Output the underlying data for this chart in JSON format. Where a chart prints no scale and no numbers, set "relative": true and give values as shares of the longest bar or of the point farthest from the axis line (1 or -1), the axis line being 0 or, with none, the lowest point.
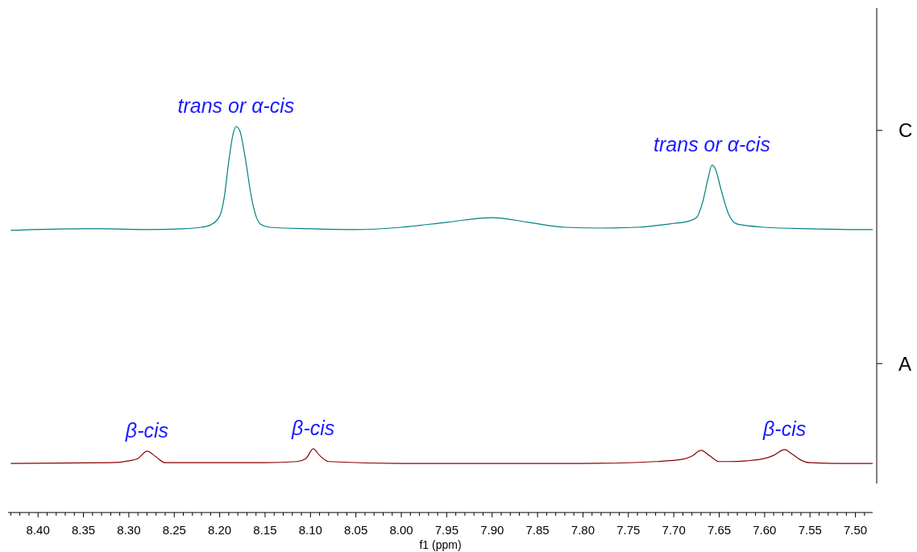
{
  "chart_data": {
    "type": "line",
    "relative": true,
    "xlabel": "f1 (ppm)",
    "xlim": [
      8.433,
      7.481
    ],
    "xticks": [
      {
        "value": 8.43,
        "label": null
      },
      {
        "value": 8.42,
        "label": null
      },
      {
        "value": 8.41,
        "label": null
      },
      {
        "value": 8.4,
        "label": "8.40"
      },
      {
        "value": 8.39,
        "label": null
      },
      {
        "value": 8.38,
        "label": null
      },
      {
        "value": 8.37,
        "label": null
      },
      {
        "value": 8.36,
        "label": null
      },
      {
        "value": 8.35,
        "label": "8.35"
      },
      {
        "value": 8.34,
        "label": null
      },
      {
        "value": 8.33,
        "label": null
      },
      {
        "value": 8.32,
        "label": null
      },
      {
        "value": 8.31,
        "label": null
      },
      {
        "value": 8.3,
        "label": "8.30"
      },
      {
        "value": 8.29,
        "label": null
      },
      {
        "value": 8.28,
        "label": null
      },
      {
        "value": 8.27,
        "label": null
      },
      {
        "value": 8.26,
        "label": null
      },
      {
        "value": 8.25,
        "label": "8.25"
      },
      {
        "value": 8.24,
        "label": null
      },
      {
        "value": 8.23,
        "label": null
      },
      {
        "value": 8.22,
        "label": null
      },
      {
        "value": 8.21,
        "label": null
      },
      {
        "value": 8.2,
        "label": "8.20"
      },
      {
        "value": 8.19,
        "label": null
      },
      {
        "value": 8.18,
        "label": null
      },
      {
        "value": 8.17,
        "label": null
      },
      {
        "value": 8.16,
        "label": null
      },
      {
        "value": 8.15,
        "label": "8.15"
      },
      {
        "value": 8.14,
        "label": null
      },
      {
        "value": 8.13,
        "label": null
      },
      {
        "value": 8.12,
        "label": null
      },
      {
        "value": 8.11,
        "label": null
      },
      {
        "value": 8.1,
        "label": "8.10"
      },
      {
        "value": 8.09,
        "label": null
      },
      {
        "value": 8.08,
        "label": null
      },
      {
        "value": 8.07,
        "label": null
      },
      {
        "value": 8.06,
        "label": null
      },
      {
        "value": 8.05,
        "label": "8.05"
      },
      {
        "value": 8.04,
        "label": null
      },
      {
        "value": 8.03,
        "label": null
      },
      {
        "value": 8.02,
        "label": null
      },
      {
        "value": 8.01,
        "label": null
      },
      {
        "value": 8.0,
        "label": "8.00"
      },
      {
        "value": 7.99,
        "label": null
      },
      {
        "value": 7.98,
        "label": null
      },
      {
        "value": 7.97,
        "label": null
      },
      {
        "value": 7.96,
        "label": null
      },
      {
        "value": 7.95,
        "label": "7.95"
      },
      {
        "value": 7.94,
        "label": null
      },
      {
        "value": 7.93,
        "label": null
      },
      {
        "value": 7.92,
        "label": null
      },
      {
        "value": 7.91,
        "label": null
      },
      {
        "value": 7.9,
        "label": "7.90"
      },
      {
        "value": 7.89,
        "label": null
      },
      {
        "value": 7.88,
        "label": null
      },
      {
        "value": 7.87,
        "label": null
      },
      {
        "value": 7.86,
        "label": null
      },
      {
        "value": 7.85,
        "label": "7.85"
      },
      {
        "value": 7.84,
        "label": null
      },
      {
        "value": 7.83,
        "label": null
      },
      {
        "value": 7.82,
        "label": null
      },
      {
        "value": 7.81,
        "label": null
      },
      {
        "value": 7.8,
        "label": "7.80"
      },
      {
        "value": 7.79,
        "label": null
      },
      {
        "value": 7.78,
        "label": null
      },
      {
        "value": 7.77,
        "label": null
      },
      {
        "value": 7.76,
        "label": null
      },
      {
        "value": 7.75,
        "label": "7.75"
      },
      {
        "value": 7.74,
        "label": null
      },
      {
        "value": 7.73,
        "label": null
      },
      {
        "value": 7.72,
        "label": null
      },
      {
        "value": 7.71,
        "label": null
      },
      {
        "value": 7.7,
        "label": "7.70"
      },
      {
        "value": 7.69,
        "label": null
      },
      {
        "value": 7.68,
        "label": null
      },
      {
        "value": 7.67,
        "label": null
      },
      {
        "value": 7.66,
        "label": null
      },
      {
        "value": 7.65,
        "label": "7.65"
      },
      {
        "value": 7.64,
        "label": null
      },
      {
        "value": 7.63,
        "label": null
      },
      {
        "value": 7.62,
        "label": null
      },
      {
        "value": 7.61,
        "label": null
      },
      {
        "value": 7.6,
        "label": "7.60"
      },
      {
        "value": 7.59,
        "label": null
      },
      {
        "value": 7.58,
        "label": null
      },
      {
        "value": 7.57,
        "label": null
      },
      {
        "value": 7.56,
        "label": null
      },
      {
        "value": 7.55,
        "label": "7.55"
      },
      {
        "value": 7.54,
        "label": null
      },
      {
        "value": 7.53,
        "label": null
      },
      {
        "value": 7.52,
        "label": null
      },
      {
        "value": 7.51,
        "label": null
      },
      {
        "value": 7.5,
        "label": "7.50"
      },
      {
        "value": 7.49,
        "label": null
      }
    ],
    "series": [
      {
        "name": "C",
        "color": "#008080",
        "x": [
          8.43,
          8.35,
          8.33,
          8.28,
          8.24,
          8.22,
          8.21,
          8.2,
          8.195,
          8.19,
          8.185,
          8.182,
          8.178,
          8.172,
          8.165,
          8.16,
          8.155,
          8.145,
          8.1,
          8.05,
          8.0,
          7.95,
          7.9,
          7.86,
          7.82,
          7.78,
          7.74,
          7.7,
          7.685,
          7.675,
          7.668,
          7.662,
          7.658,
          7.654,
          7.648,
          7.64,
          7.63,
          7.6,
          7.55,
          7.5,
          7.481
        ],
        "values": [
          0.731,
          0.735,
          0.735,
          0.733,
          0.735,
          0.739,
          0.745,
          0.768,
          0.816,
          0.91,
          0.983,
          1,
          0.99,
          0.921,
          0.816,
          0.768,
          0.747,
          0.739,
          0.735,
          0.733,
          0.739,
          0.752,
          0.764,
          0.752,
          0.739,
          0.737,
          0.739,
          0.749,
          0.754,
          0.764,
          0.806,
          0.868,
          0.9,
          0.889,
          0.837,
          0.775,
          0.747,
          0.739,
          0.735,
          0.733,
          0.733
        ]
      },
      {
        "name": "A",
        "color": "#8b0000",
        "x": [
          8.43,
          8.32,
          8.3,
          8.29,
          8.28,
          8.27,
          8.26,
          8.23,
          8.15,
          8.115,
          8.105,
          8.097,
          8.09,
          8.08,
          8.0,
          7.8,
          7.72,
          7.69,
          7.68,
          7.67,
          7.66,
          7.65,
          7.64,
          7.62,
          7.6,
          7.59,
          7.578,
          7.57,
          7.56,
          7.55,
          7.5,
          7.481
        ],
        "values": [
          0.127,
          0.129,
          0.134,
          0.14,
          0.159,
          0.144,
          0.129,
          0.129,
          0.129,
          0.132,
          0.14,
          0.165,
          0.148,
          0.132,
          0.127,
          0.127,
          0.132,
          0.138,
          0.146,
          0.161,
          0.146,
          0.132,
          0.132,
          0.134,
          0.14,
          0.148,
          0.163,
          0.152,
          0.136,
          0.129,
          0.127,
          0.127
        ]
      }
    ],
    "annotations": [
      {
        "text": "trans or α-cis",
        "x": 8.182,
        "y": 1
      },
      {
        "text": "trans or α-cis",
        "x": 7.658,
        "y": 0.9
      },
      {
        "text": "β-cis",
        "x": 8.28,
        "y": 0.159
      },
      {
        "text": "β-cis",
        "x": 8.097,
        "y": 0.165
      },
      {
        "text": "β-cis",
        "x": 7.578,
        "y": 0.163
      }
    ],
    "grid": false,
    "marker": "none",
    "line_style": "solid"
  }
}
